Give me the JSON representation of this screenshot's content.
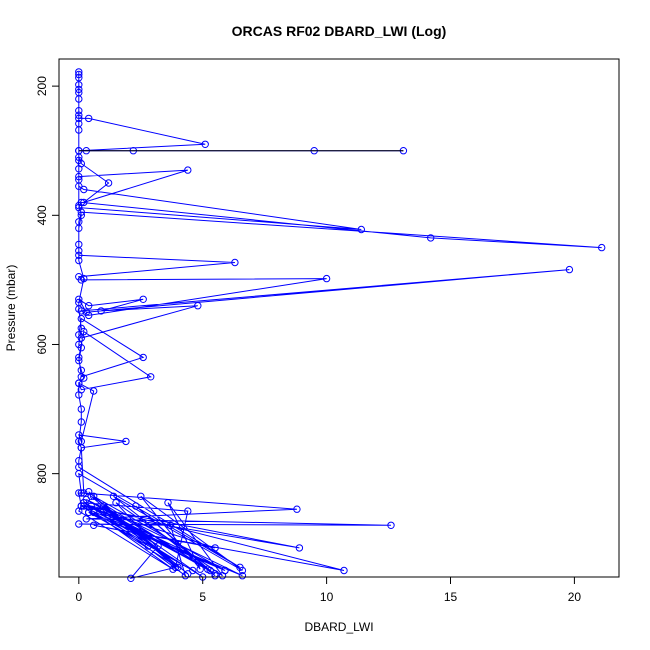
{
  "chart_data": {
    "type": "line",
    "title": "ORCAS RF02 DBARD_LWI (Log)",
    "xlabel": "DBARD_LWI",
    "ylabel": "Pressure (mbar)",
    "xlim": [
      -0.8,
      21.8
    ],
    "ylim": [
      960,
      158
    ],
    "y_reversed": true,
    "x_ticks": [
      0,
      5,
      10,
      15,
      20
    ],
    "y_ticks": [
      200,
      400,
      600,
      800
    ],
    "grid": false,
    "series": [
      {
        "color": "#0000ff",
        "marker": "open-circle",
        "points": [
          [
            0,
            178
          ],
          [
            0,
            182
          ],
          [
            0,
            187
          ],
          [
            0,
            198
          ],
          [
            0,
            205
          ],
          [
            0,
            210
          ],
          [
            0,
            220
          ],
          [
            0,
            238
          ],
          [
            0,
            250
          ],
          [
            0.4,
            250
          ],
          [
            5.1,
            290
          ],
          [
            0,
            300
          ],
          [
            0.3,
            300
          ],
          [
            2.2,
            300
          ],
          [
            9.5,
            300
          ],
          [
            13.1,
            300
          ],
          [
            0,
            300
          ],
          [
            0,
            310
          ],
          [
            0.1,
            320
          ],
          [
            1.2,
            350
          ],
          [
            0.2,
            380
          ],
          [
            4.4,
            330
          ],
          [
            0,
            340
          ],
          [
            0,
            355
          ],
          [
            0.2,
            360
          ],
          [
            11.4,
            422
          ],
          [
            0,
            388
          ],
          [
            0.1,
            380
          ],
          [
            14.2,
            435
          ],
          [
            21.1,
            450
          ],
          [
            0.1,
            395
          ],
          [
            0,
            410
          ],
          [
            0,
            445
          ],
          [
            0,
            462
          ],
          [
            6.3,
            473
          ],
          [
            0,
            495
          ],
          [
            0.1,
            500
          ],
          [
            10.0,
            498
          ],
          [
            0.4,
            555
          ],
          [
            0.1,
            548
          ],
          [
            19.8,
            484
          ],
          [
            0.3,
            550
          ],
          [
            0,
            530
          ],
          [
            0.4,
            540
          ],
          [
            2.6,
            530
          ],
          [
            0.9,
            548
          ],
          [
            4.8,
            540
          ],
          [
            0.1,
            590
          ],
          [
            0,
            585
          ],
          [
            0.1,
            560
          ],
          [
            2.6,
            620
          ],
          [
            0.1,
            650
          ],
          [
            0,
            620
          ],
          [
            0.2,
            580
          ],
          [
            2.9,
            650
          ],
          [
            0.1,
            670
          ],
          [
            0,
            660
          ],
          [
            0.6,
            672
          ],
          [
            0.1,
            750
          ],
          [
            0,
            740
          ],
          [
            1.9,
            750
          ],
          [
            0.1,
            760
          ],
          [
            0,
            780
          ],
          [
            0,
            790
          ],
          [
            6.5,
            945
          ],
          [
            0,
            800
          ],
          [
            0.1,
            830
          ],
          [
            8.8,
            855
          ],
          [
            0.3,
            870
          ],
          [
            12.6,
            880
          ],
          [
            0,
            878
          ],
          [
            3.7,
            880
          ],
          [
            4.3,
            958
          ],
          [
            0.5,
            850
          ],
          [
            10.7,
            950
          ],
          [
            0.6,
            880
          ],
          [
            5.5,
            915
          ],
          [
            0.2,
            850
          ],
          [
            8.9,
            915
          ],
          [
            0.4,
            860
          ],
          [
            5.9,
            950
          ],
          [
            0.6,
            835
          ],
          [
            4.4,
            955
          ],
          [
            1.0,
            850
          ],
          [
            5.3,
            950
          ],
          [
            2.3,
            850
          ],
          [
            5.5,
            958
          ],
          [
            1.4,
            835
          ],
          [
            6.6,
            950
          ],
          [
            2.5,
            835
          ],
          [
            4.9,
            948
          ],
          [
            3.6,
            845
          ],
          [
            5.8,
            958
          ],
          [
            1.5,
            845
          ],
          [
            3.9,
            945
          ],
          [
            0.4,
            828
          ],
          [
            2.8,
            912
          ],
          [
            0.5,
            835
          ],
          [
            5.2,
            948
          ],
          [
            0.2,
            845
          ],
          [
            5.9,
            950
          ],
          [
            0.1,
            850
          ],
          [
            4.0,
            945
          ],
          [
            1.1,
            855
          ],
          [
            5.0,
            960
          ],
          [
            0.2,
            845
          ],
          [
            4.4,
            858
          ],
          [
            3.9,
            945
          ],
          [
            2.1,
            962
          ],
          [
            3.2,
            912
          ],
          [
            1.0,
            858
          ],
          [
            5.5,
            955
          ],
          [
            0.3,
            840
          ],
          [
            6.6,
            958
          ],
          [
            0.4,
            860
          ],
          [
            4.6,
            950
          ],
          [
            0.6,
            860
          ],
          [
            3.8,
            948
          ],
          [
            0,
            858
          ],
          [
            0.1,
            850
          ],
          [
            0,
            830
          ],
          [
            0.2,
            830
          ],
          [
            0.1,
            760
          ],
          [
            0,
            750
          ],
          [
            0.1,
            720
          ],
          [
            0.1,
            700
          ],
          [
            0,
            678
          ],
          [
            0,
            660
          ],
          [
            0.2,
            652
          ],
          [
            0.1,
            640
          ],
          [
            0,
            625
          ],
          [
            0.1,
            605
          ],
          [
            0,
            600
          ],
          [
            0.1,
            575
          ],
          [
            0,
            545
          ],
          [
            0,
            535
          ],
          [
            0.2,
            498
          ],
          [
            0,
            470
          ],
          [
            0,
            455
          ],
          [
            0,
            420
          ],
          [
            0.1,
            400
          ],
          [
            0,
            385
          ],
          [
            0,
            345
          ],
          [
            0,
            328
          ],
          [
            0,
            315
          ],
          [
            0,
            268
          ],
          [
            0,
            258
          ],
          [
            0,
            245
          ]
        ]
      },
      {
        "color": "#000000",
        "marker": "none",
        "points": [
          [
            0,
            300
          ],
          [
            13.1,
            300
          ]
        ]
      }
    ]
  }
}
